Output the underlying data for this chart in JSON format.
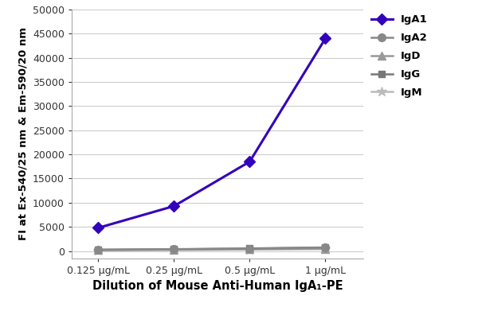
{
  "x_labels": [
    "0.125 μg/mL",
    "0.25 μg/mL",
    "0.5 μg/mL",
    "1 μg/mL"
  ],
  "x_positions": [
    1,
    2,
    3,
    4
  ],
  "series_order": [
    "IgA1",
    "IgA2",
    "IgD",
    "IgG",
    "IgM"
  ],
  "series": {
    "IgA1": {
      "values": [
        4800,
        9300,
        18500,
        44000
      ],
      "color": "#3300bb",
      "marker": "D",
      "linewidth": 2.2,
      "markersize": 7,
      "markerfacecolor": "#3300bb",
      "zorder": 5
    },
    "IgA2": {
      "values": [
        300,
        400,
        500,
        700
      ],
      "color": "#888888",
      "marker": "o",
      "linewidth": 1.8,
      "markersize": 7,
      "markerfacecolor": "#888888",
      "zorder": 4
    },
    "IgD": {
      "values": [
        200,
        300,
        400,
        500
      ],
      "color": "#999999",
      "marker": "^",
      "linewidth": 1.8,
      "markersize": 7,
      "markerfacecolor": "#999999",
      "zorder": 3
    },
    "IgG": {
      "values": [
        250,
        350,
        550,
        750
      ],
      "color": "#777777",
      "marker": "s",
      "linewidth": 1.8,
      "markersize": 6,
      "markerfacecolor": "#777777",
      "zorder": 2
    },
    "IgM": {
      "values": [
        150,
        200,
        300,
        400
      ],
      "color": "#bbbbbb",
      "marker": "*",
      "linewidth": 1.8,
      "markersize": 9,
      "markerfacecolor": "#bbbbbb",
      "zorder": 1
    }
  },
  "ylabel": "FI at Ex-540/25 nm & Em-590/20 nm",
  "xlabel": "Dilution of Mouse Anti-Human IgA₁-PE",
  "ylim": [
    -1500,
    50000
  ],
  "yticks": [
    0,
    5000,
    10000,
    15000,
    20000,
    25000,
    30000,
    35000,
    40000,
    45000,
    50000
  ],
  "background_color": "#ffffff",
  "grid_color": "#cccccc",
  "legend_fontsize": 9.5,
  "xlabel_fontsize": 10.5,
  "ylabel_fontsize": 9.5
}
